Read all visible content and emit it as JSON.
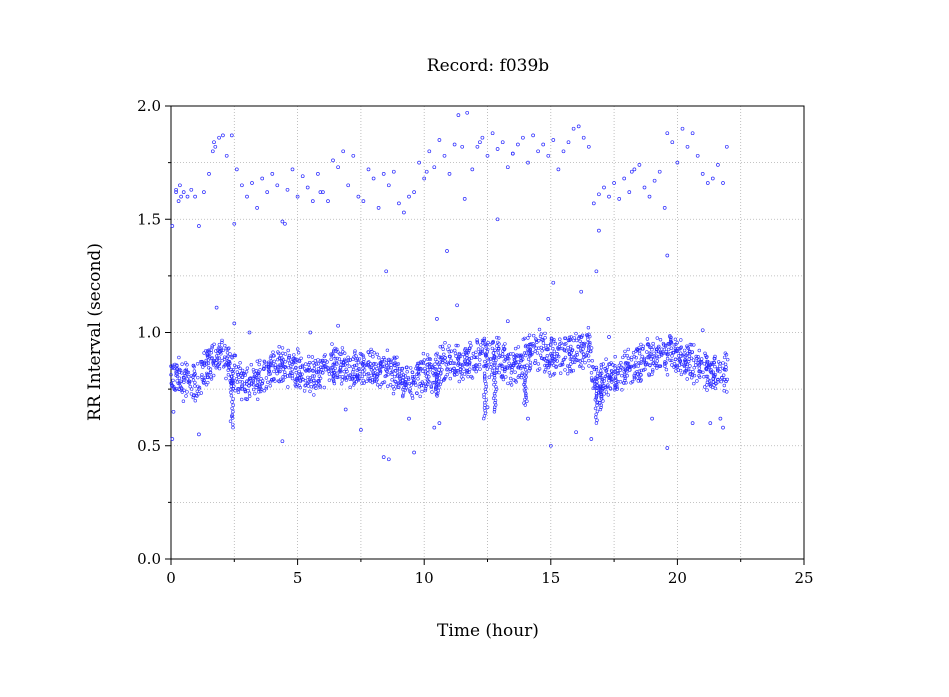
{
  "chart_data": {
    "type": "scatter",
    "title": "Record:  f039b",
    "xlabel": "Time (hour)",
    "ylabel": "RR Interval (second)",
    "xlim": [
      0,
      25
    ],
    "ylim": [
      0.0,
      2.0
    ],
    "x_ticks": [
      "0",
      "5",
      "10",
      "15",
      "20",
      "25"
    ],
    "y_ticks": [
      "0.0",
      "0.5",
      "1.0",
      "1.5",
      "2.0"
    ],
    "x_tick_values": [
      0,
      5,
      10,
      15,
      20,
      25
    ],
    "y_tick_values": [
      0.0,
      0.5,
      1.0,
      1.5,
      2.0
    ],
    "grid": true,
    "marker_color": "#2b2bff",
    "series": [
      {
        "values": [
          [
            0.05,
            1.47
          ],
          [
            0.2,
            1.63
          ],
          [
            0.35,
            1.65
          ],
          [
            0.5,
            1.62
          ],
          [
            0.65,
            1.6
          ],
          [
            0.8,
            1.63
          ],
          [
            0.95,
            1.6
          ],
          [
            1.1,
            1.47
          ],
          [
            1.3,
            1.62
          ],
          [
            1.5,
            1.7
          ],
          [
            1.65,
            1.8
          ],
          [
            1.75,
            1.82
          ],
          [
            1.9,
            1.86
          ],
          [
            2.05,
            1.87
          ],
          [
            2.2,
            1.78
          ],
          [
            2.4,
            1.87
          ],
          [
            2.6,
            1.72
          ],
          [
            2.8,
            1.65
          ],
          [
            3.0,
            1.6
          ],
          [
            3.2,
            1.66
          ],
          [
            3.4,
            1.55
          ],
          [
            3.6,
            1.68
          ],
          [
            3.8,
            1.62
          ],
          [
            4.0,
            1.7
          ],
          [
            4.2,
            1.65
          ],
          [
            4.4,
            1.49
          ],
          [
            4.6,
            1.63
          ],
          [
            4.8,
            1.72
          ],
          [
            5.0,
            1.6
          ],
          [
            5.2,
            1.69
          ],
          [
            5.4,
            1.64
          ],
          [
            5.6,
            1.58
          ],
          [
            5.8,
            1.7
          ],
          [
            6.0,
            1.62
          ],
          [
            6.2,
            1.58
          ],
          [
            6.4,
            1.76
          ],
          [
            6.6,
            1.73
          ],
          [
            6.8,
            1.8
          ],
          [
            7.0,
            1.65
          ],
          [
            7.2,
            1.78
          ],
          [
            7.4,
            1.6
          ],
          [
            7.6,
            1.58
          ],
          [
            7.8,
            1.72
          ],
          [
            8.0,
            1.68
          ],
          [
            8.2,
            1.55
          ],
          [
            8.4,
            1.7
          ],
          [
            8.6,
            1.65
          ],
          [
            8.8,
            1.71
          ],
          [
            9.0,
            1.57
          ],
          [
            9.2,
            1.53
          ],
          [
            9.4,
            1.6
          ],
          [
            9.6,
            1.62
          ],
          [
            9.8,
            1.75
          ],
          [
            10.0,
            1.68
          ],
          [
            10.2,
            1.8
          ],
          [
            10.4,
            1.73
          ],
          [
            10.6,
            1.85
          ],
          [
            10.8,
            1.78
          ],
          [
            11.0,
            1.7
          ],
          [
            11.2,
            1.83
          ],
          [
            11.35,
            1.96
          ],
          [
            11.5,
            1.82
          ],
          [
            11.7,
            1.97
          ],
          [
            11.9,
            1.72
          ],
          [
            12.1,
            1.82
          ],
          [
            12.3,
            1.86
          ],
          [
            12.5,
            1.78
          ],
          [
            12.7,
            1.88
          ],
          [
            12.9,
            1.81
          ],
          [
            13.1,
            1.84
          ],
          [
            13.3,
            1.73
          ],
          [
            13.5,
            1.79
          ],
          [
            13.7,
            1.83
          ],
          [
            13.9,
            1.86
          ],
          [
            14.1,
            1.75
          ],
          [
            14.3,
            1.87
          ],
          [
            14.5,
            1.8
          ],
          [
            14.7,
            1.83
          ],
          [
            14.9,
            1.78
          ],
          [
            15.1,
            1.85
          ],
          [
            15.3,
            1.72
          ],
          [
            15.5,
            1.8
          ],
          [
            15.7,
            1.84
          ],
          [
            15.9,
            1.9
          ],
          [
            16.1,
            1.91
          ],
          [
            16.3,
            1.86
          ],
          [
            16.5,
            1.82
          ],
          [
            16.7,
            1.57
          ],
          [
            16.9,
            1.61
          ],
          [
            17.1,
            1.64
          ],
          [
            17.3,
            1.6
          ],
          [
            17.5,
            1.66
          ],
          [
            17.7,
            1.59
          ],
          [
            17.9,
            1.68
          ],
          [
            18.1,
            1.62
          ],
          [
            18.3,
            1.72
          ],
          [
            18.5,
            1.74
          ],
          [
            18.7,
            1.64
          ],
          [
            18.9,
            1.6
          ],
          [
            19.1,
            1.67
          ],
          [
            19.3,
            1.71
          ],
          [
            19.5,
            1.55
          ],
          [
            19.6,
            1.88
          ],
          [
            19.8,
            1.84
          ],
          [
            20.0,
            1.75
          ],
          [
            20.2,
            1.9
          ],
          [
            20.4,
            1.82
          ],
          [
            20.6,
            1.88
          ],
          [
            20.8,
            1.78
          ],
          [
            21.0,
            1.7
          ],
          [
            21.2,
            1.66
          ],
          [
            21.4,
            1.68
          ],
          [
            21.6,
            1.74
          ],
          [
            21.8,
            1.66
          ],
          [
            21.95,
            1.82
          ],
          [
            0.3,
            1.58
          ],
          [
            2.5,
            1.48
          ],
          [
            4.5,
            1.48
          ],
          [
            11.6,
            1.59
          ],
          [
            16.9,
            1.45
          ],
          [
            0.05,
            0.53
          ],
          [
            0.1,
            0.65
          ],
          [
            1.1,
            0.55
          ],
          [
            2.4,
            0.63
          ],
          [
            4.4,
            0.52
          ],
          [
            5.5,
            1.0
          ],
          [
            6.9,
            0.66
          ],
          [
            7.5,
            0.57
          ],
          [
            8.4,
            0.45
          ],
          [
            8.6,
            0.44
          ],
          [
            9.4,
            0.62
          ],
          [
            9.6,
            0.47
          ],
          [
            10.4,
            0.58
          ],
          [
            10.6,
            0.6
          ],
          [
            11.3,
            1.12
          ],
          [
            12.5,
            0.67
          ],
          [
            14.1,
            0.62
          ],
          [
            15.0,
            0.5
          ],
          [
            16.0,
            0.56
          ],
          [
            16.6,
            0.53
          ],
          [
            19.0,
            0.62
          ],
          [
            19.6,
            0.49
          ],
          [
            20.6,
            0.6
          ],
          [
            21.3,
            0.6
          ],
          [
            21.7,
            0.62
          ],
          [
            21.8,
            0.58
          ],
          [
            1.8,
            1.11
          ],
          [
            2.5,
            1.04
          ],
          [
            8.5,
            1.27
          ],
          [
            10.9,
            1.36
          ],
          [
            12.9,
            1.5
          ],
          [
            15.1,
            1.22
          ],
          [
            16.2,
            1.18
          ],
          [
            16.8,
            1.27
          ],
          [
            19.6,
            1.34
          ],
          [
            3.1,
            1.0
          ],
          [
            6.6,
            1.03
          ],
          [
            10.5,
            1.06
          ],
          [
            13.3,
            1.05
          ],
          [
            14.9,
            1.06
          ],
          [
            17.3,
            0.98
          ],
          [
            21.0,
            1.01
          ],
          [
            0.2,
            1.62
          ],
          [
            0.4,
            1.6
          ],
          [
            1.7,
            1.84
          ],
          [
            5.9,
            1.62
          ],
          [
            10.1,
            1.71
          ],
          [
            12.2,
            1.84
          ],
          [
            13.5,
            1.79
          ],
          [
            18.2,
            1.71
          ]
        ]
      }
    ],
    "dense_band": {
      "segments": [
        [
          0.0,
          0.8
        ],
        [
          1.0,
          0.78
        ],
        [
          1.5,
          0.86
        ],
        [
          2.0,
          0.9
        ],
        [
          2.4,
          0.82
        ],
        [
          3.0,
          0.78
        ],
        [
          3.5,
          0.79
        ],
        [
          4.0,
          0.84
        ],
        [
          4.5,
          0.86
        ],
        [
          5.0,
          0.84
        ],
        [
          5.5,
          0.8
        ],
        [
          6.0,
          0.84
        ],
        [
          6.5,
          0.86
        ],
        [
          7.0,
          0.83
        ],
        [
          7.5,
          0.84
        ],
        [
          8.0,
          0.85
        ],
        [
          8.5,
          0.84
        ],
        [
          9.0,
          0.8
        ],
        [
          9.5,
          0.78
        ],
        [
          10.0,
          0.82
        ],
        [
          10.5,
          0.84
        ],
        [
          11.0,
          0.88
        ],
        [
          11.5,
          0.86
        ],
        [
          12.0,
          0.9
        ],
        [
          12.5,
          0.9
        ],
        [
          13.0,
          0.88
        ],
        [
          13.5,
          0.84
        ],
        [
          14.0,
          0.9
        ],
        [
          14.5,
          0.92
        ],
        [
          15.0,
          0.9
        ],
        [
          15.5,
          0.9
        ],
        [
          16.0,
          0.92
        ],
        [
          16.5,
          0.94
        ],
        [
          16.8,
          0.76
        ],
        [
          17.2,
          0.8
        ],
        [
          17.8,
          0.82
        ],
        [
          18.3,
          0.85
        ],
        [
          18.8,
          0.88
        ],
        [
          19.3,
          0.9
        ],
        [
          19.8,
          0.9
        ],
        [
          20.3,
          0.88
        ],
        [
          20.8,
          0.85
        ],
        [
          21.3,
          0.82
        ],
        [
          21.8,
          0.82
        ],
        [
          22.0,
          0.82
        ]
      ],
      "spread": 0.09
    }
  }
}
